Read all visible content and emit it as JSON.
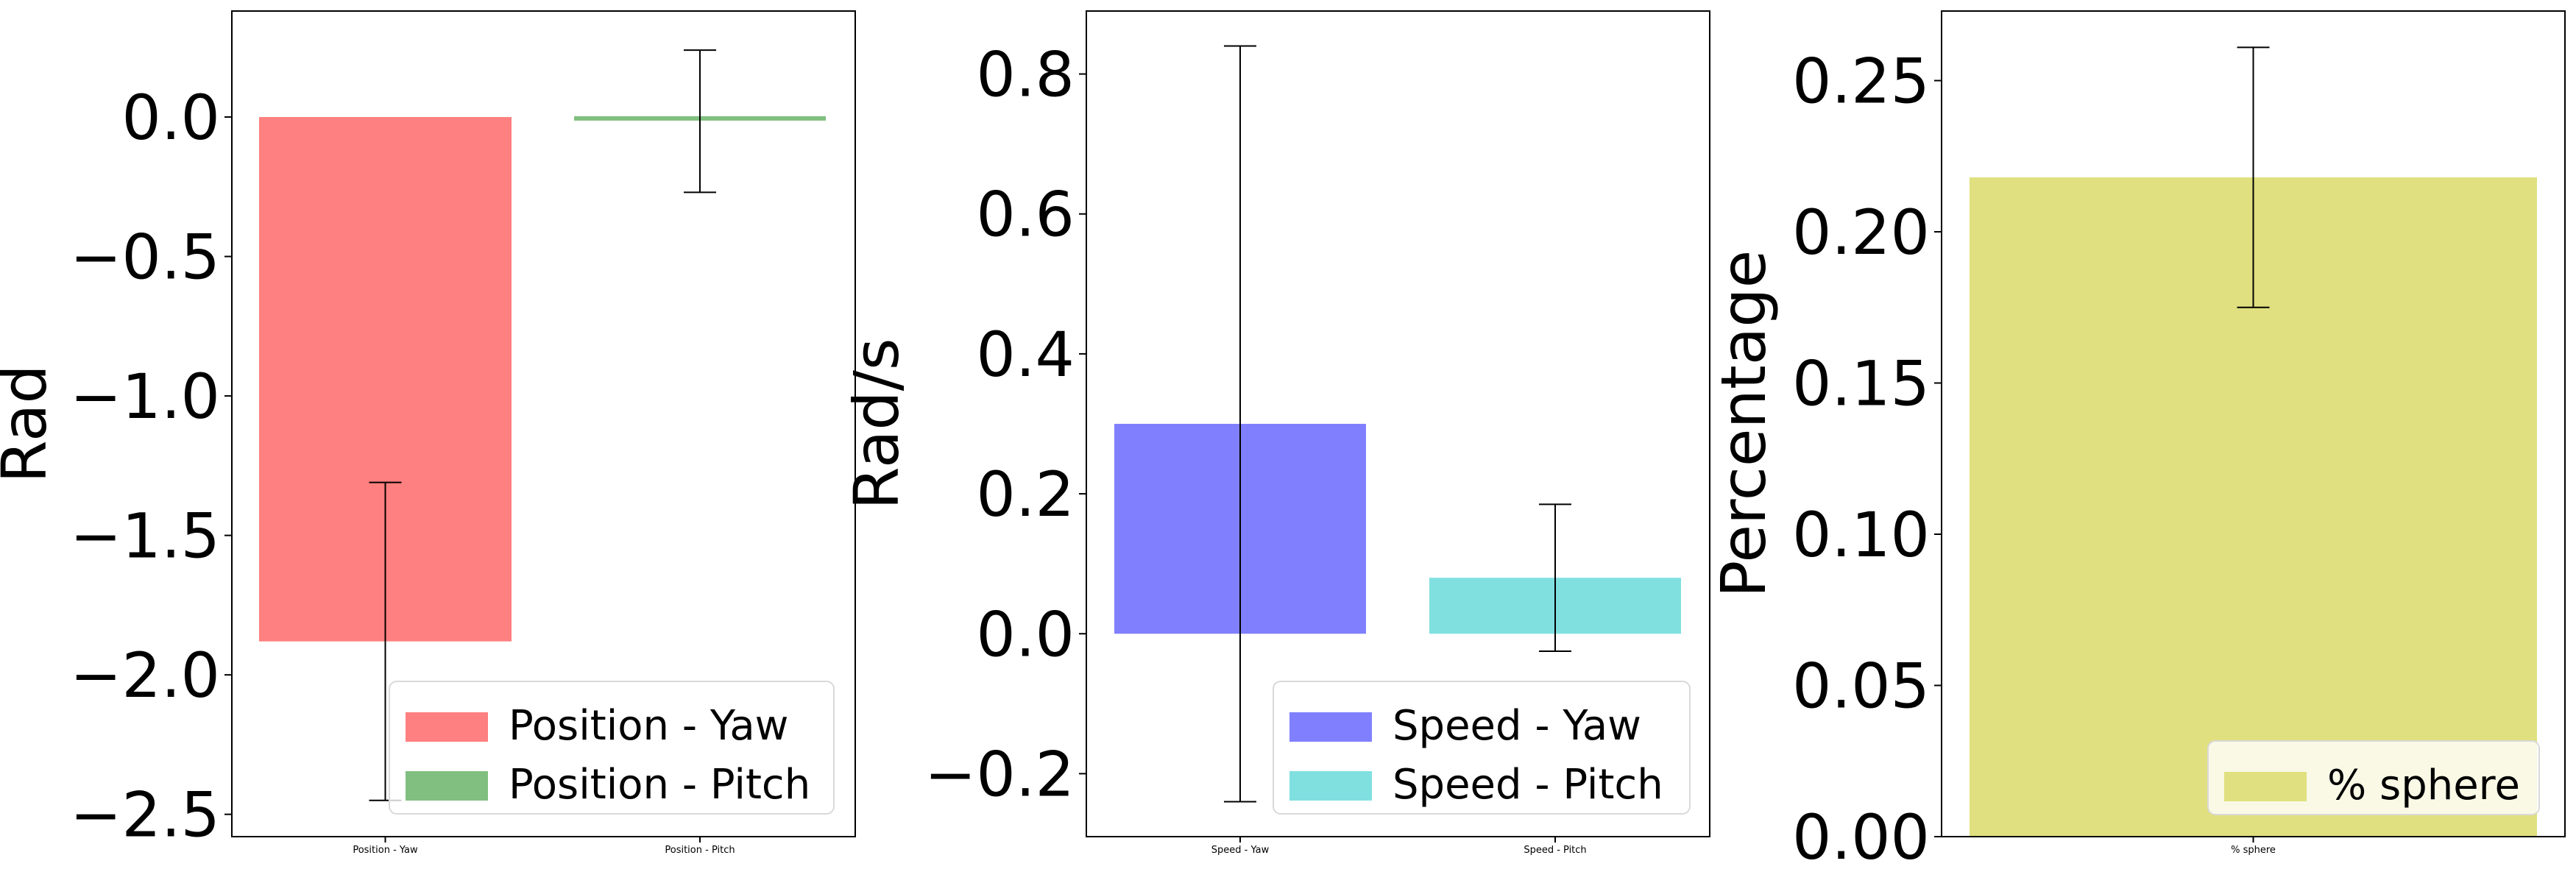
{
  "chart_data": [
    {
      "type": "bar",
      "ylabel": "Rad",
      "ylim": [
        -2.58,
        0.38
      ],
      "yticks": [
        0.0,
        -0.5,
        -1.0,
        -1.5,
        -2.0,
        -2.5
      ],
      "ytick_labels": [
        "0.0",
        "−0.5",
        "−1.0",
        "−1.5",
        "−2.0",
        "−2.5"
      ],
      "categories": [
        "Position - Yaw",
        "Position - Pitch"
      ],
      "values": [
        -1.88,
        -0.01
      ],
      "errors": [
        [
          -2.45,
          -1.31
        ],
        [
          -0.27,
          0.24
        ]
      ],
      "colors": [
        "#ff8080",
        "#80bf80"
      ],
      "legend": [
        "Position - Yaw",
        "Position - Pitch"
      ],
      "legend_loc": "lower right"
    },
    {
      "type": "bar",
      "ylabel": "Rad/s",
      "ylim": [
        -0.29,
        0.89
      ],
      "yticks": [
        0.8,
        0.6,
        0.4,
        0.2,
        0.0,
        -0.2
      ],
      "ytick_labels": [
        "0.8",
        "0.6",
        "0.4",
        "0.2",
        "0.0",
        "−0.2"
      ],
      "categories": [
        "Speed - Yaw",
        "Speed - Pitch"
      ],
      "values": [
        0.3,
        0.08
      ],
      "errors": [
        [
          -0.24,
          0.84
        ],
        [
          -0.025,
          0.185
        ]
      ],
      "colors": [
        "#8080ff",
        "#80e0e0"
      ],
      "legend": [
        "Speed - Yaw",
        "Speed - Pitch"
      ],
      "legend_loc": "lower right"
    },
    {
      "type": "bar",
      "ylabel": "Percentage",
      "ylim": [
        0.0,
        0.273
      ],
      "yticks": [
        0.25,
        0.2,
        0.15,
        0.1,
        0.05,
        0.0
      ],
      "ytick_labels": [
        "0.25",
        "0.20",
        "0.15",
        "0.10",
        "0.05",
        "0.00"
      ],
      "categories": [
        "% sphere"
      ],
      "values": [
        0.218
      ],
      "errors": [
        [
          0.175,
          0.261
        ]
      ],
      "colors": [
        "#e0e080"
      ],
      "legend": [
        "% sphere"
      ],
      "legend_loc": "lower right"
    }
  ]
}
